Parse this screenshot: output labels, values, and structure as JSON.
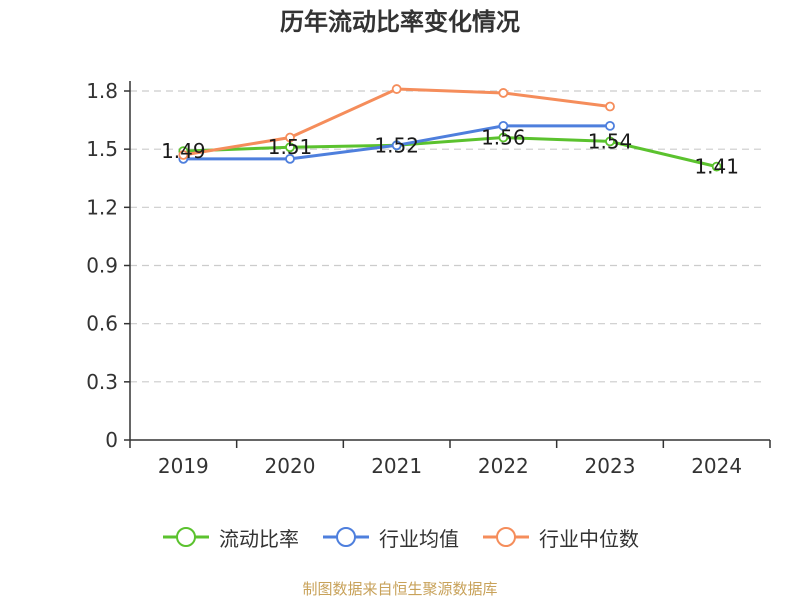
{
  "chart_data": {
    "type": "line",
    "title": "历年流动比率变化情况",
    "categories": [
      "2019",
      "2020",
      "2021",
      "2022",
      "2023",
      "2024"
    ],
    "ylim": [
      0,
      1.8
    ],
    "yticks": [
      "0",
      "0.3",
      "0.6",
      "0.9",
      "1.2",
      "1.5",
      "1.8"
    ],
    "grid": true,
    "legend_position": "bottom",
    "series": [
      {
        "name": "流动比率",
        "color": "#5bc22e",
        "values": [
          1.49,
          1.51,
          1.52,
          1.56,
          1.54,
          1.41
        ],
        "labels": [
          "1.49",
          "1.51",
          "1.52",
          "1.56",
          "1.54",
          "1.41"
        ]
      },
      {
        "name": "行业均值",
        "color": "#4e7fdd",
        "values": [
          1.45,
          1.45,
          1.52,
          1.62,
          1.62,
          null
        ]
      },
      {
        "name": "行业中位数",
        "color": "#f58d5b",
        "values": [
          1.47,
          1.56,
          1.81,
          1.79,
          1.72,
          null
        ]
      }
    ]
  },
  "source": "制图数据来自恒生聚源数据库"
}
